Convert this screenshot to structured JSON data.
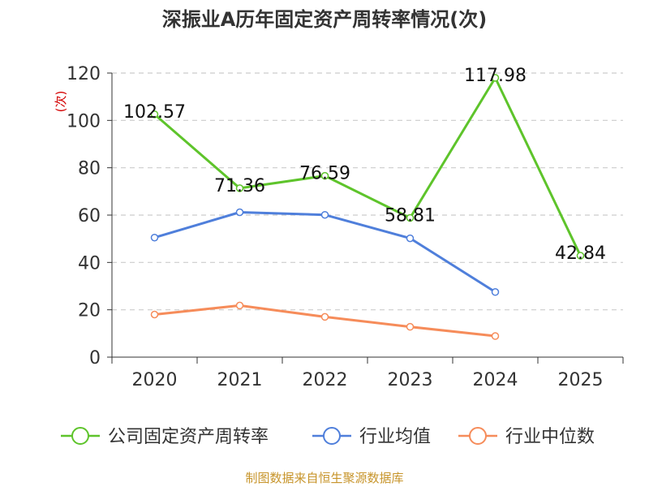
{
  "chart_data": {
    "type": "line",
    "title": "深振业A历年固定资产周转率情况(次)",
    "ylabel": "(次)",
    "xlabel": "",
    "categories": [
      "2020",
      "2021",
      "2022",
      "2023",
      "2024",
      "2025"
    ],
    "ylim": [
      0,
      120
    ],
    "yticks": [
      0,
      20,
      40,
      60,
      80,
      100,
      120
    ],
    "grid": true,
    "legend_position": "bottom",
    "series": [
      {
        "name": "公司固定资产周转率",
        "values": [
          102.57,
          71.36,
          76.59,
          58.81,
          117.98,
          42.84
        ],
        "labels": [
          "102.57",
          "71.36",
          "76.59",
          "58.81",
          "117.98",
          "42.84"
        ],
        "color": "#5ec42b"
      },
      {
        "name": "行业均值",
        "values": [
          50.5,
          61.2,
          60.1,
          50.2,
          27.5,
          null
        ],
        "color": "#4f7fdb"
      },
      {
        "name": "行业中位数",
        "values": [
          18.0,
          21.8,
          17.0,
          12.8,
          8.9,
          null
        ],
        "color": "#f68c5a"
      }
    ]
  },
  "colors": {
    "ylabel": "#d40000",
    "footer": "#c7942a",
    "grid": "#cccccc",
    "axis": "#333333"
  },
  "footer_text": "制图数据来自恒生聚源数据库"
}
